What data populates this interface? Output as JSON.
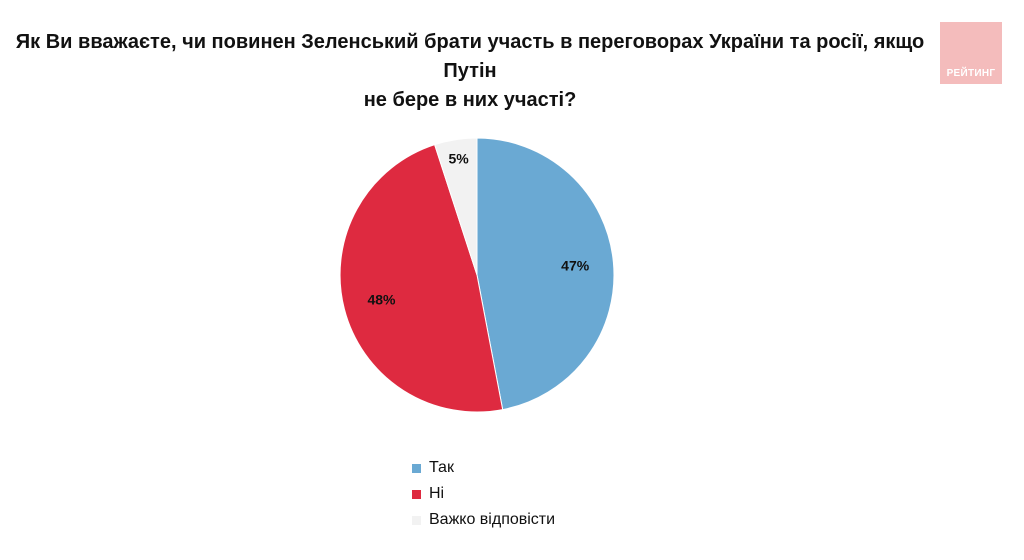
{
  "title_lines": [
    "Як Ви вважаєте, чи повинен Зеленський брати участь в переговорах України та росії, якщо Путін",
    "не бере в них участі?"
  ],
  "logo": {
    "text": "РЕЙТИНГ",
    "color": "#f4bcbc"
  },
  "chart_data": {
    "type": "pie",
    "title": "Як Ви вважаєте, чи повинен Зеленський брати участь в переговорах України та росії, якщо Путін не бере в них участі?",
    "categories": [
      "Так",
      "Ні",
      "Важко відповісти"
    ],
    "values": [
      47,
      48,
      5
    ],
    "labels": [
      "47%",
      "48%",
      "5%"
    ],
    "colors": [
      "#6aa9d3",
      "#de2a40",
      "#f2f2f2"
    ],
    "start": "12 o'clock, clockwise",
    "legend_position": "bottom"
  }
}
